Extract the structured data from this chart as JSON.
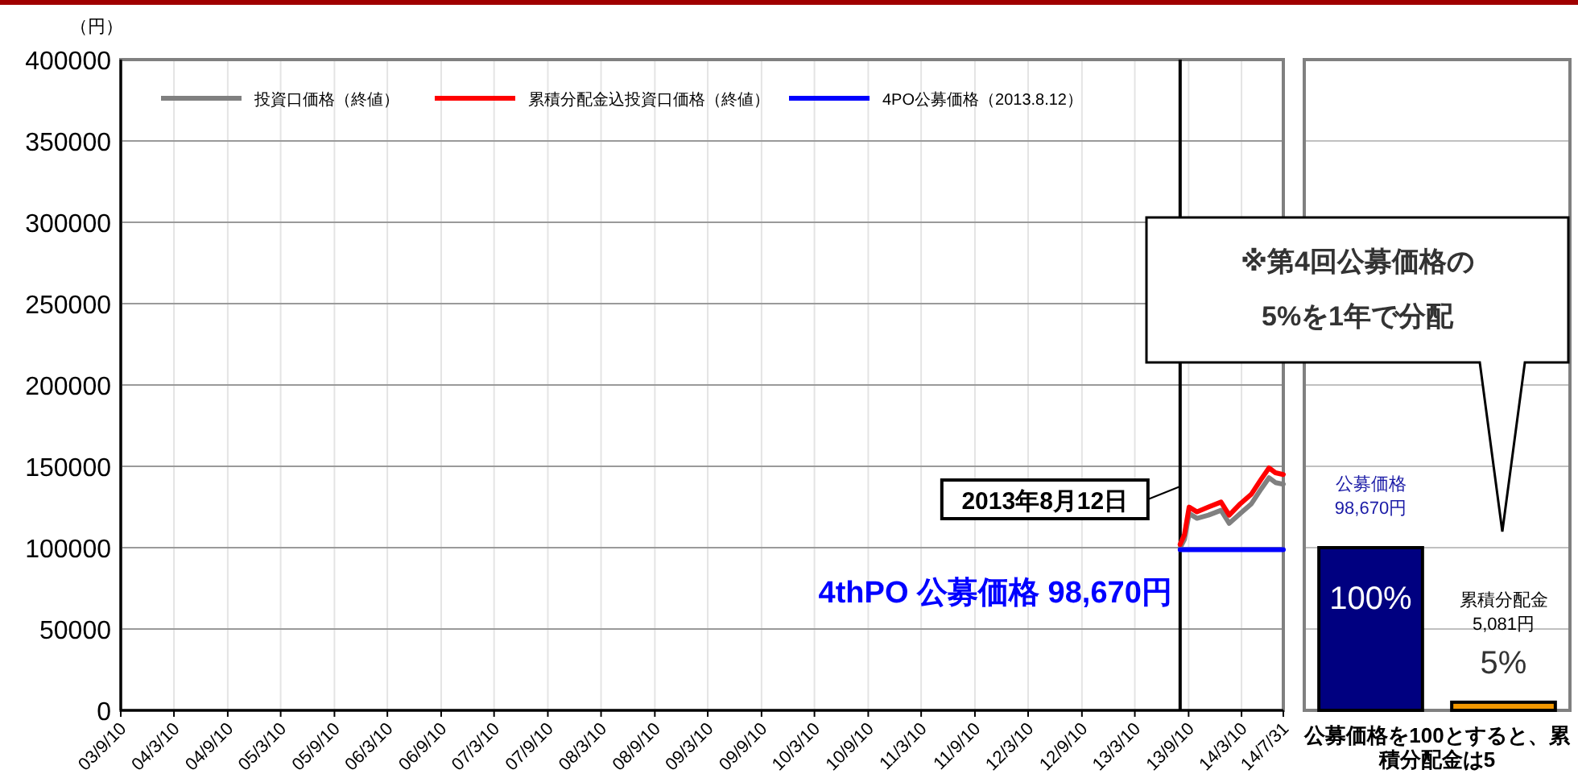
{
  "chart_data": [
    {
      "type": "line",
      "ylabel": "（円）",
      "legend": "top left",
      "grid": true,
      "xlim": [
        "2003-09-10",
        "2014-07-31"
      ],
      "xticks": [
        {
          "value": "2003-09-10",
          "label": "03/9/10"
        },
        {
          "value": "2004-03-10",
          "label": "04/3/10"
        },
        {
          "value": "2004-09-10",
          "label": "04/9/10"
        },
        {
          "value": "2005-03-10",
          "label": "05/3/10"
        },
        {
          "value": "2005-09-10",
          "label": "05/9/10"
        },
        {
          "value": "2006-03-10",
          "label": "06/3/10"
        },
        {
          "value": "2006-09-10",
          "label": "06/9/10"
        },
        {
          "value": "2007-03-10",
          "label": "07/3/10"
        },
        {
          "value": "2007-09-10",
          "label": "07/9/10"
        },
        {
          "value": "2008-03-10",
          "label": "08/3/10"
        },
        {
          "value": "2008-09-10",
          "label": "08/9/10"
        },
        {
          "value": "2009-03-10",
          "label": "09/3/10"
        },
        {
          "value": "2009-09-10",
          "label": "09/9/10"
        },
        {
          "value": "2010-03-10",
          "label": "10/3/10"
        },
        {
          "value": "2010-09-10",
          "label": "10/9/10"
        },
        {
          "value": "2011-03-10",
          "label": "11/3/10"
        },
        {
          "value": "2011-09-10",
          "label": "11/9/10"
        },
        {
          "value": "2012-03-10",
          "label": "12/3/10"
        },
        {
          "value": "2012-09-10",
          "label": "12/9/10"
        },
        {
          "value": "2013-03-10",
          "label": "13/3/10"
        },
        {
          "value": "2013-09-10",
          "label": "13/9/10"
        },
        {
          "value": "2014-03-10",
          "label": "14/3/10"
        },
        {
          "value": "2014-07-31",
          "label": "14/7/31"
        }
      ],
      "ylim": [
        0,
        400000
      ],
      "yticks": [
        0,
        50000,
        100000,
        150000,
        200000,
        250000,
        300000,
        350000,
        400000
      ],
      "series": [
        {
          "name": "投資口価格（終値）",
          "color": "#808080",
          "x": [
            "2013-08-12",
            "2013-08-27",
            "2013-09-12",
            "2013-10-09",
            "2013-11-17",
            "2013-12-30",
            "2014-01-27",
            "2014-03-06",
            "2014-04-13",
            "2014-05-16",
            "2014-06-12",
            "2014-07-04",
            "2014-07-31"
          ],
          "values": [
            100000,
            105000,
            121000,
            118000,
            120000,
            123000,
            115000,
            121000,
            127000,
            136000,
            143000,
            140000,
            139000
          ]
        },
        {
          "name": "累積分配金込投資口価格（終値）",
          "color": "#ff0000",
          "x": [
            "2013-08-12",
            "2013-08-27",
            "2013-09-12",
            "2013-10-09",
            "2013-11-17",
            "2013-12-30",
            "2014-01-27",
            "2014-03-06",
            "2014-04-13",
            "2014-05-16",
            "2014-06-12",
            "2014-07-04",
            "2014-07-31"
          ],
          "values": [
            102000,
            108000,
            125000,
            122000,
            125000,
            128000,
            120000,
            127000,
            133000,
            142000,
            149000,
            146000,
            145000
          ]
        },
        {
          "name": "4PO公募価格（2013.8.12）",
          "color": "#0000ff",
          "x": [
            "2013-08-12",
            "2014-07-31"
          ],
          "values": [
            98670,
            98670
          ]
        }
      ],
      "ref_lines": [
        {
          "axis": "x",
          "value": "2013-08-12",
          "label": "2013年8月12日",
          "color": "#000000"
        }
      ],
      "annotations": [
        "4thPO 公募価格  98,670円"
      ]
    },
    {
      "type": "bar",
      "categories": [
        null,
        null
      ],
      "values": [
        100,
        5
      ],
      "colors": [
        "#000080",
        "#f39800"
      ],
      "value_labels": [
        "100%",
        "5%"
      ],
      "ylim": [
        0,
        400
      ],
      "grid": true,
      "annotations": [
        "公募価格\n98,670円",
        "累積分配金\n5,081円",
        "公募価格を100とすると、累積分配金は5",
        "※第4回公募価格の\n5%を1年で分配"
      ]
    }
  ]
}
